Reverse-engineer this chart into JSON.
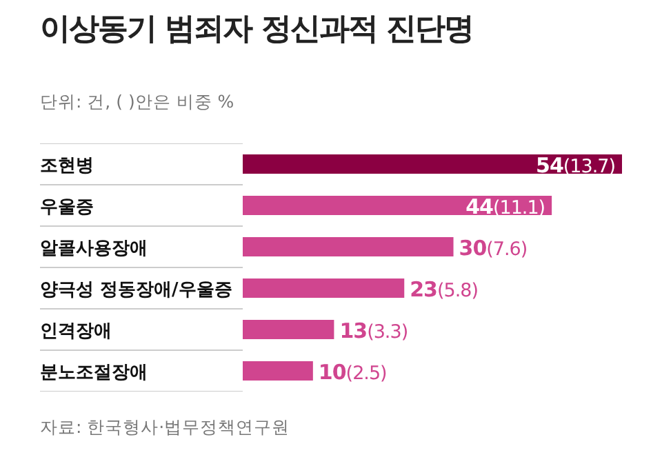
{
  "chart_data": {
    "type": "bar",
    "orientation": "horizontal",
    "title": "이상동기 범죄자 정신과적 진단명",
    "subtitle": "단위: 건, ( )안은 비중 %",
    "categories": [
      "조현병",
      "우울증",
      "알콜사용장애",
      "양극성 정동장애/우울증",
      "인격장애",
      "분노조절장애"
    ],
    "values": [
      54,
      44,
      30,
      23,
      13,
      10
    ],
    "value_labels": [
      "54(13.7)",
      "44(11.1)",
      "30(7.6)",
      "23(5.8)",
      "13(3.3)",
      "10(2.5)"
    ],
    "colors": [
      "#8b0042",
      "#d0458f",
      "#d0458f",
      "#d0458f",
      "#d0458f",
      "#d0458f"
    ],
    "annotations": [
      "자료: 한국형사·법무정책연구원"
    ]
  }
}
